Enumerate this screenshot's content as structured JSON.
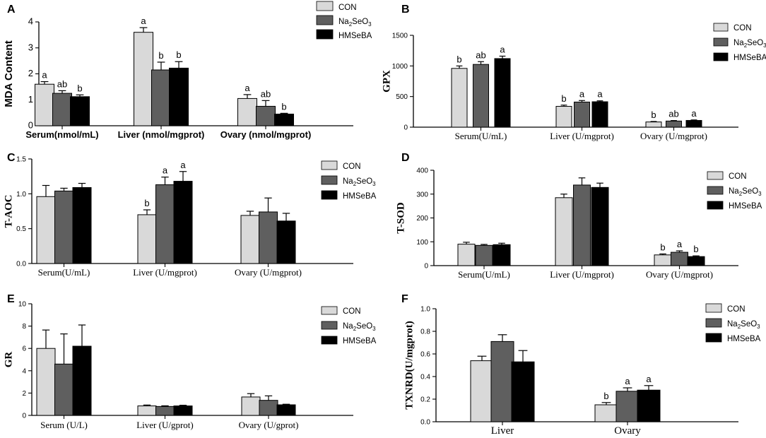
{
  "figure": {
    "legend": [
      {
        "name": "CON",
        "color": "#d9d9d9"
      },
      {
        "name": "Na2SeO3",
        "base": "Na",
        "sub1": "2",
        "mid": "SeO",
        "sub2": "3",
        "color": "#5f5f5f"
      },
      {
        "name": "HMSeBA",
        "color": "#000000"
      }
    ]
  },
  "chart_data": [
    {
      "panel": "A",
      "type": "bar",
      "ylabel": "MDA Content",
      "ylim": [
        0,
        4
      ],
      "yticks": [
        0,
        1,
        2,
        3,
        4
      ],
      "categories": [
        "Serum(nmol/mL)",
        "Liver (nmol/mgprot)",
        "Ovary (nmol/mgprot)"
      ],
      "series": [
        {
          "name": "CON",
          "values": [
            1.6,
            3.6,
            1.05
          ],
          "errors": [
            0.1,
            0.18,
            0.15
          ],
          "letters": [
            "a",
            "a",
            "a"
          ]
        },
        {
          "name": "Na2SeO3",
          "values": [
            1.25,
            2.15,
            0.75
          ],
          "errors": [
            0.1,
            0.3,
            0.22
          ],
          "letters": [
            "ab",
            "b",
            "ab"
          ]
        },
        {
          "name": "HMSeBA",
          "values": [
            1.12,
            2.22,
            0.45
          ],
          "errors": [
            0.07,
            0.25,
            0.03
          ],
          "letters": [
            "b",
            "b",
            "b"
          ]
        }
      ]
    },
    {
      "panel": "B",
      "type": "bar",
      "ylabel": "GPX",
      "ylim": [
        0,
        1500
      ],
      "yticks": [
        0,
        500,
        1000,
        1500
      ],
      "categories": [
        "Serum(U/mL)",
        "Liver (U/mgprot)",
        "Ovary (U/mgprot)"
      ],
      "series": [
        {
          "name": "CON",
          "values": [
            960,
            340,
            85
          ],
          "errors": [
            40,
            20,
            8
          ],
          "letters": [
            "b",
            "b",
            "b"
          ]
        },
        {
          "name": "Na2SeO3",
          "values": [
            1025,
            410,
            100
          ],
          "errors": [
            45,
            25,
            8
          ],
          "letters": [
            "ab",
            "a",
            "ab"
          ]
        },
        {
          "name": "HMSeBA",
          "values": [
            1120,
            415,
            110
          ],
          "errors": [
            40,
            15,
            8
          ],
          "letters": [
            "a",
            "a",
            "a"
          ]
        }
      ]
    },
    {
      "panel": "C",
      "type": "bar",
      "ylabel": "T-AOC",
      "ylim": [
        0,
        1.5
      ],
      "yticks": [
        0.0,
        0.5,
        1.0,
        1.5
      ],
      "categories": [
        "Serum(U/mL)",
        "Liver (U/mgprot)",
        "Ovary (U/mgprot)"
      ],
      "series": [
        {
          "name": "CON",
          "values": [
            0.96,
            0.7,
            0.69
          ],
          "errors": [
            0.16,
            0.07,
            0.06
          ],
          "letters": [
            "",
            "b",
            ""
          ]
        },
        {
          "name": "Na2SeO3",
          "values": [
            1.04,
            1.13,
            0.74
          ],
          "errors": [
            0.04,
            0.11,
            0.2
          ],
          "letters": [
            "",
            "a",
            ""
          ]
        },
        {
          "name": "HMSeBA",
          "values": [
            1.09,
            1.18,
            0.61
          ],
          "errors": [
            0.06,
            0.14,
            0.11
          ],
          "letters": [
            "",
            "a",
            ""
          ]
        }
      ]
    },
    {
      "panel": "D",
      "type": "bar",
      "ylabel": "T-SOD",
      "ylim": [
        0,
        400
      ],
      "yticks": [
        0,
        100,
        200,
        300,
        400
      ],
      "categories": [
        "Serum(U/mL)",
        "Liver (U/mgprot)",
        "Ovary (U/mgprot)"
      ],
      "series": [
        {
          "name": "CON",
          "values": [
            90,
            285,
            45
          ],
          "errors": [
            8,
            15,
            4
          ],
          "letters": [
            "",
            "",
            "b"
          ]
        },
        {
          "name": "Na2SeO3",
          "values": [
            85,
            338,
            56
          ],
          "errors": [
            4,
            30,
            6
          ],
          "letters": [
            "",
            "",
            "a"
          ]
        },
        {
          "name": "HMSeBA",
          "values": [
            88,
            328,
            38
          ],
          "errors": [
            6,
            18,
            3
          ],
          "letters": [
            "",
            "",
            "b"
          ]
        }
      ]
    },
    {
      "panel": "E",
      "type": "bar",
      "ylabel": "GR",
      "ylim": [
        0,
        10
      ],
      "yticks": [
        0,
        2,
        4,
        6,
        8,
        10
      ],
      "categories": [
        "Serum (U/L)",
        "Liver (U/gprot)",
        "Ovary (U/gprot)"
      ],
      "series": [
        {
          "name": "CON",
          "values": [
            6.0,
            0.85,
            1.65
          ],
          "errors": [
            1.65,
            0.08,
            0.3
          ],
          "letters": [
            "",
            "",
            ""
          ]
        },
        {
          "name": "Na2SeO3",
          "values": [
            4.6,
            0.8,
            1.35
          ],
          "errors": [
            2.7,
            0.06,
            0.4
          ],
          "letters": [
            "",
            "",
            ""
          ]
        },
        {
          "name": "HMSeBA",
          "values": [
            6.2,
            0.85,
            0.95
          ],
          "errors": [
            1.9,
            0.06,
            0.05
          ],
          "letters": [
            "",
            "",
            ""
          ]
        }
      ]
    },
    {
      "panel": "F",
      "type": "bar",
      "ylabel": "TXNRD(U/mgprot)",
      "ylim": [
        0,
        1.0
      ],
      "yticks": [
        0.0,
        0.2,
        0.4,
        0.6,
        0.8,
        1.0
      ],
      "categories": [
        "Liver",
        "Ovary"
      ],
      "series": [
        {
          "name": "CON",
          "values": [
            0.54,
            0.15
          ],
          "errors": [
            0.04,
            0.02
          ],
          "letters": [
            "",
            "b"
          ]
        },
        {
          "name": "Na2SeO3",
          "values": [
            0.71,
            0.27
          ],
          "errors": [
            0.06,
            0.03
          ],
          "letters": [
            "",
            "a"
          ]
        },
        {
          "name": "HMSeBA",
          "values": [
            0.53,
            0.28
          ],
          "errors": [
            0.1,
            0.04
          ],
          "letters": [
            "",
            "a"
          ]
        }
      ]
    }
  ]
}
